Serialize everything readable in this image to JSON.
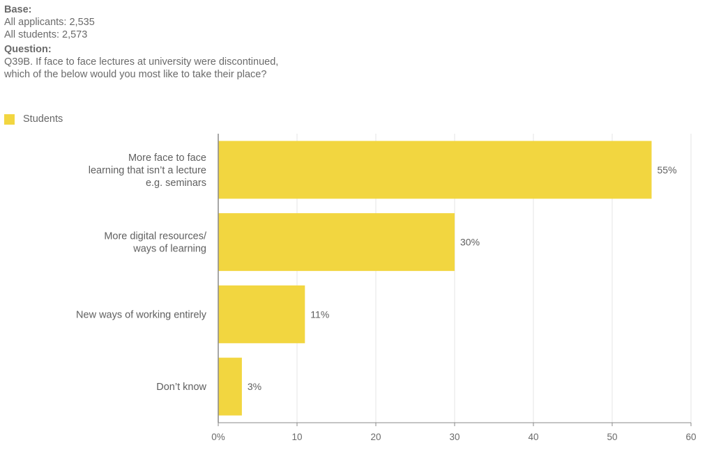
{
  "header": {
    "base_label": "Base:",
    "base_lines": [
      "All applicants: 2,535",
      "All students: 2,573"
    ],
    "question_label": "Question:",
    "question_lines": [
      "Q39B. If face to face lectures at university were discontinued,",
      "which of the below would you most like to take their place?"
    ]
  },
  "colors": {
    "bar": "#f2d640",
    "grid": "#e6e6e6",
    "axis": "#888888"
  },
  "chart_data": {
    "type": "bar",
    "orientation": "horizontal",
    "legend_position": "top-left",
    "grid": true,
    "series": [
      {
        "name": "Students",
        "values": [
          55,
          30,
          11,
          3
        ]
      }
    ],
    "categories": [
      [
        "More face to face",
        "learning that isn’t a lecture",
        "e.g. seminars"
      ],
      [
        "More digital resources/",
        "ways of learning"
      ],
      [
        "New ways of working entirely"
      ],
      [
        "Don’t know"
      ]
    ],
    "data_labels": [
      "55%",
      "30%",
      "11%",
      "3%"
    ],
    "xlim": [
      0,
      60
    ],
    "xticks": [
      0,
      10,
      20,
      30,
      40,
      50,
      60
    ],
    "xtick_labels": [
      "0%",
      "10",
      "20",
      "30",
      "40",
      "50",
      "60"
    ]
  }
}
